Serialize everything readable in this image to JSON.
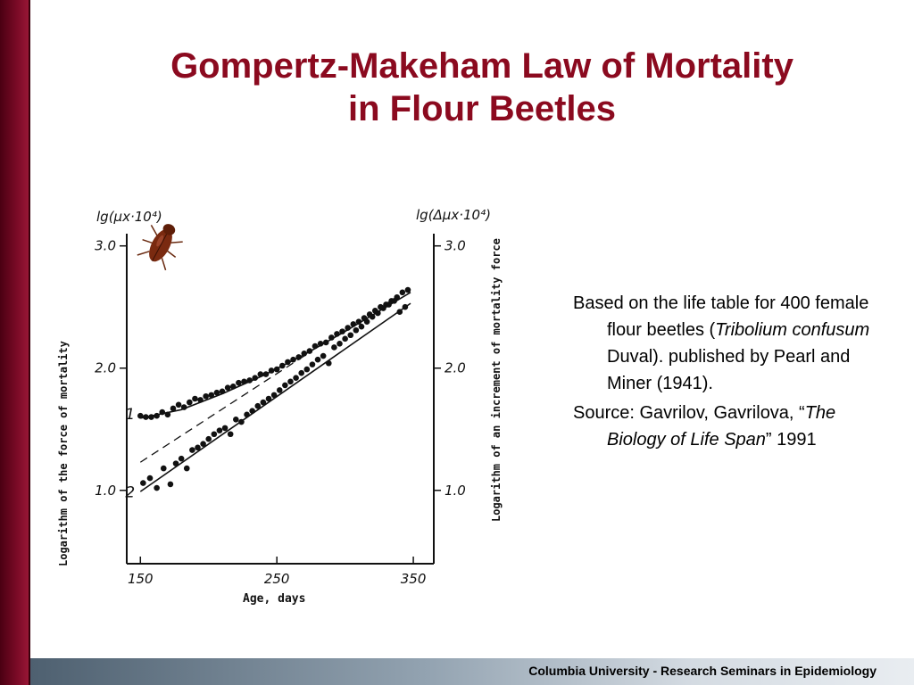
{
  "title": {
    "line1": "Gompertz-Makeham Law of Mortality",
    "line2": "in Flour Beetles"
  },
  "body": {
    "p1_pre": "Based on the life table for 400 female flour beetles (",
    "p1_species": "Tribolium confusum",
    "p1_post": " Duval). published by Pearl and Miner (1941).",
    "p2_pre": "Source: Gavrilov, Gavrilova, “",
    "p2_book": "The Biology of Life Span",
    "p2_post": "” 1991"
  },
  "footer": "Columbia University - Research Seminars in Epidemiology",
  "colors": {
    "title": "#8b0a1f",
    "left_bar": "#7a0a26",
    "footer_gradient_start": "#4e6070"
  },
  "icons": {
    "beetle": "beetle-icon"
  },
  "chart_data": {
    "type": "scatter",
    "xlabel": "Age, days",
    "ylabel_left": "Logarithm of the force of mortality",
    "ylabel_right": "Logarithm of an increment of mortality force",
    "left_axis_header": "lg(μx·10⁴)",
    "right_axis_header": "lg(Δμx·10⁴)",
    "xlim": [
      140,
      365
    ],
    "ylim": [
      0.4,
      3.1
    ],
    "x_ticks": [
      150,
      250,
      350
    ],
    "x_tick_labels": [
      "150",
      "250",
      "350"
    ],
    "y_ticks": [
      1.0,
      2.0,
      3.0
    ],
    "y_tick_labels": [
      "1.0",
      "2.0",
      "3.0"
    ],
    "right_y_tick_labels": [
      "1.0",
      "2.0",
      "3.0"
    ],
    "series": [
      {
        "name": "1",
        "points": [
          [
            150,
            1.61
          ],
          [
            154,
            1.6
          ],
          [
            158,
            1.6
          ],
          [
            162,
            1.61
          ],
          [
            166,
            1.64
          ],
          [
            170,
            1.62
          ],
          [
            174,
            1.67
          ],
          [
            178,
            1.7
          ],
          [
            182,
            1.68
          ],
          [
            186,
            1.72
          ],
          [
            190,
            1.75
          ],
          [
            194,
            1.74
          ],
          [
            198,
            1.77
          ],
          [
            202,
            1.78
          ],
          [
            206,
            1.8
          ],
          [
            210,
            1.81
          ],
          [
            214,
            1.84
          ],
          [
            218,
            1.85
          ],
          [
            222,
            1.88
          ],
          [
            226,
            1.89
          ],
          [
            230,
            1.9
          ],
          [
            234,
            1.92
          ],
          [
            238,
            1.95
          ],
          [
            242,
            1.95
          ],
          [
            246,
            1.98
          ],
          [
            250,
            1.99
          ],
          [
            254,
            2.02
          ],
          [
            258,
            2.05
          ],
          [
            262,
            2.07
          ],
          [
            266,
            2.09
          ],
          [
            270,
            2.12
          ],
          [
            274,
            2.14
          ],
          [
            278,
            2.18
          ],
          [
            282,
            2.2
          ],
          [
            286,
            2.21
          ],
          [
            290,
            2.25
          ],
          [
            294,
            2.28
          ],
          [
            298,
            2.3
          ],
          [
            302,
            2.33
          ],
          [
            306,
            2.36
          ],
          [
            310,
            2.38
          ],
          [
            314,
            2.41
          ],
          [
            318,
            2.44
          ],
          [
            322,
            2.47
          ],
          [
            326,
            2.5
          ],
          [
            330,
            2.52
          ],
          [
            334,
            2.55
          ],
          [
            338,
            2.58
          ],
          [
            342,
            2.62
          ],
          [
            346,
            2.64
          ]
        ],
        "fit_curve": [
          [
            150,
            1.59
          ],
          [
            180,
            1.66
          ],
          [
            210,
            1.79
          ],
          [
            240,
            1.94
          ],
          [
            270,
            2.11
          ],
          [
            300,
            2.3
          ],
          [
            330,
            2.5
          ],
          [
            348,
            2.62
          ]
        ]
      },
      {
        "name": "2",
        "points": [
          [
            152,
            1.06
          ],
          [
            157,
            1.1
          ],
          [
            162,
            1.02
          ],
          [
            167,
            1.18
          ],
          [
            172,
            1.05
          ],
          [
            176,
            1.22
          ],
          [
            180,
            1.26
          ],
          [
            184,
            1.18
          ],
          [
            188,
            1.33
          ],
          [
            192,
            1.35
          ],
          [
            196,
            1.38
          ],
          [
            200,
            1.42
          ],
          [
            204,
            1.46
          ],
          [
            208,
            1.49
          ],
          [
            212,
            1.51
          ],
          [
            216,
            1.46
          ],
          [
            220,
            1.58
          ],
          [
            224,
            1.56
          ],
          [
            228,
            1.62
          ],
          [
            232,
            1.65
          ],
          [
            236,
            1.69
          ],
          [
            240,
            1.72
          ],
          [
            244,
            1.75
          ],
          [
            248,
            1.78
          ],
          [
            252,
            1.82
          ],
          [
            256,
            1.86
          ],
          [
            260,
            1.89
          ],
          [
            264,
            1.92
          ],
          [
            268,
            1.96
          ],
          [
            272,
            1.99
          ],
          [
            276,
            2.03
          ],
          [
            280,
            2.07
          ],
          [
            284,
            2.1
          ],
          [
            288,
            2.04
          ],
          [
            292,
            2.17
          ],
          [
            296,
            2.2
          ],
          [
            300,
            2.24
          ],
          [
            304,
            2.27
          ],
          [
            308,
            2.31
          ],
          [
            312,
            2.34
          ],
          [
            316,
            2.38
          ],
          [
            320,
            2.42
          ],
          [
            324,
            2.45
          ],
          [
            328,
            2.49
          ],
          [
            332,
            2.52
          ],
          [
            336,
            2.55
          ],
          [
            340,
            2.46
          ],
          [
            344,
            2.5
          ]
        ],
        "fit_line": [
          [
            150,
            0.99
          ],
          [
            348,
            2.53
          ]
        ]
      }
    ],
    "asymptote_dashed": [
      [
        150,
        1.23
      ],
      [
        270,
        2.1
      ]
    ],
    "curve_labels": [
      "1",
      "2"
    ]
  }
}
